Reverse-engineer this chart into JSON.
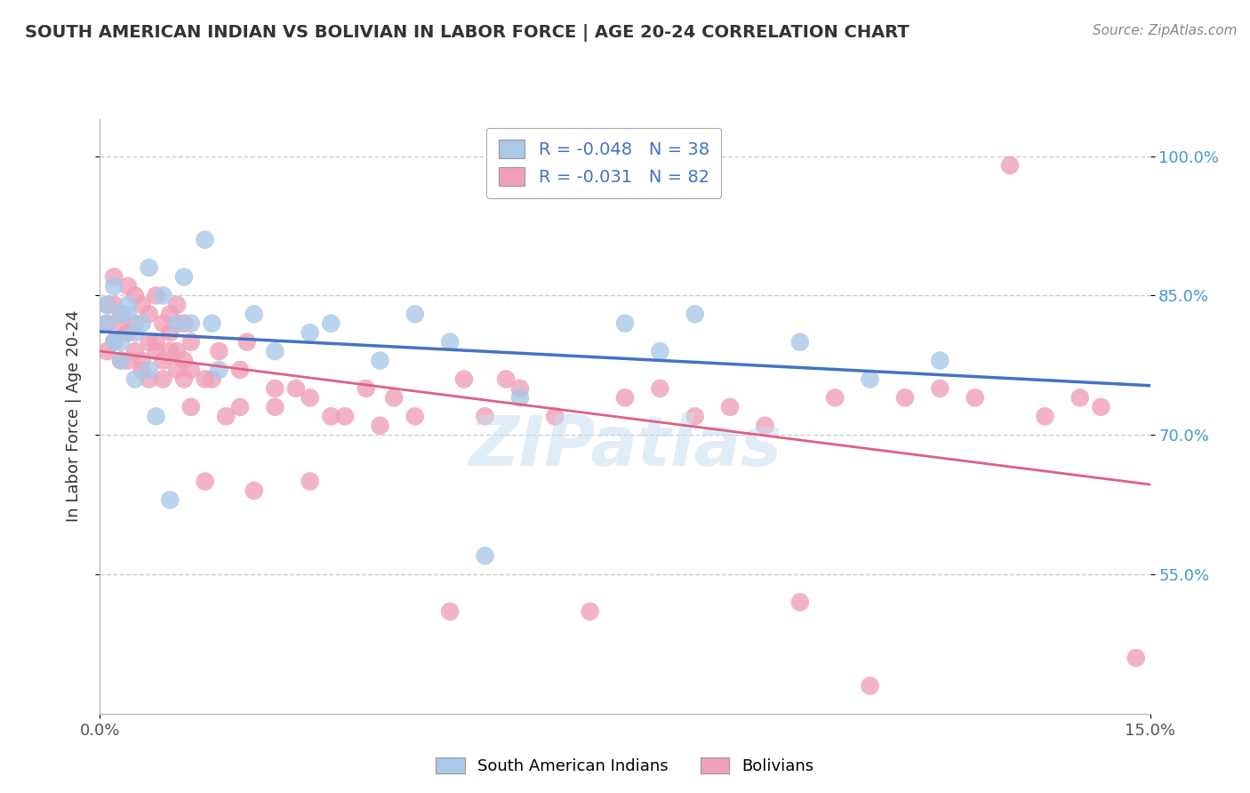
{
  "title": "SOUTH AMERICAN INDIAN VS BOLIVIAN IN LABOR FORCE | AGE 20-24 CORRELATION CHART",
  "source_text": "Source: ZipAtlas.com",
  "ylabel": "In Labor Force | Age 20-24",
  "legend_label_blue": "South American Indians",
  "legend_label_pink": "Bolivians",
  "r_blue": -0.048,
  "n_blue": 38,
  "r_pink": -0.031,
  "n_pink": 82,
  "xmin": 0.0,
  "xmax": 0.15,
  "ymin": 0.4,
  "ymax": 1.04,
  "yticks": [
    0.55,
    0.7,
    0.85,
    1.0
  ],
  "ytick_labels_right": [
    "55.0%",
    "70.0%",
    "85.0%",
    "100.0%"
  ],
  "xticks": [
    0.0,
    0.15
  ],
  "xtick_labels": [
    "0.0%",
    "15.0%"
  ],
  "blue_color": "#aac8e8",
  "pink_color": "#f0a0b8",
  "blue_line_color": "#4472c4",
  "pink_line_color": "#e06080",
  "title_color": "#333333",
  "source_color": "#888888",
  "grid_color": "#cccccc",
  "blue_x": [
    0.001,
    0.001,
    0.002,
    0.003,
    0.003,
    0.004,
    0.005,
    0.005,
    0.006,
    0.007,
    0.008,
    0.009,
    0.01,
    0.011,
    0.012,
    0.013,
    0.015,
    0.016,
    0.017,
    0.022,
    0.025,
    0.03,
    0.033,
    0.04,
    0.045,
    0.05,
    0.055,
    0.06,
    0.075,
    0.08,
    0.085,
    0.1,
    0.11,
    0.12,
    0.003,
    0.004,
    0.007,
    0.002
  ],
  "blue_y": [
    0.82,
    0.84,
    0.8,
    0.83,
    0.78,
    0.84,
    0.81,
    0.76,
    0.82,
    0.88,
    0.72,
    0.85,
    0.63,
    0.82,
    0.87,
    0.82,
    0.91,
    0.82,
    0.77,
    0.83,
    0.79,
    0.81,
    0.82,
    0.78,
    0.83,
    0.8,
    0.57,
    0.74,
    0.82,
    0.79,
    0.83,
    0.8,
    0.76,
    0.78,
    0.8,
    0.83,
    0.77,
    0.86
  ],
  "pink_x": [
    0.001,
    0.001,
    0.002,
    0.002,
    0.003,
    0.003,
    0.004,
    0.004,
    0.005,
    0.005,
    0.006,
    0.006,
    0.007,
    0.007,
    0.008,
    0.008,
    0.009,
    0.009,
    0.01,
    0.01,
    0.011,
    0.011,
    0.012,
    0.012,
    0.013,
    0.013,
    0.015,
    0.016,
    0.017,
    0.018,
    0.02,
    0.021,
    0.022,
    0.025,
    0.028,
    0.03,
    0.033,
    0.035,
    0.038,
    0.04,
    0.042,
    0.045,
    0.05,
    0.052,
    0.055,
    0.058,
    0.06,
    0.065,
    0.07,
    0.075,
    0.08,
    0.085,
    0.09,
    0.095,
    0.1,
    0.105,
    0.11,
    0.115,
    0.12,
    0.125,
    0.13,
    0.135,
    0.14,
    0.143,
    0.148,
    0.001,
    0.002,
    0.003,
    0.004,
    0.005,
    0.006,
    0.007,
    0.008,
    0.009,
    0.01,
    0.011,
    0.012,
    0.013,
    0.015,
    0.02,
    0.025,
    0.03
  ],
  "pink_y": [
    0.84,
    0.79,
    0.87,
    0.8,
    0.83,
    0.78,
    0.86,
    0.78,
    0.85,
    0.79,
    0.84,
    0.77,
    0.83,
    0.76,
    0.85,
    0.8,
    0.76,
    0.82,
    0.83,
    0.79,
    0.84,
    0.77,
    0.76,
    0.82,
    0.73,
    0.8,
    0.65,
    0.76,
    0.79,
    0.72,
    0.73,
    0.8,
    0.64,
    0.73,
    0.75,
    0.65,
    0.72,
    0.72,
    0.75,
    0.71,
    0.74,
    0.72,
    0.51,
    0.76,
    0.72,
    0.76,
    0.75,
    0.72,
    0.51,
    0.74,
    0.75,
    0.72,
    0.73,
    0.71,
    0.52,
    0.74,
    0.43,
    0.74,
    0.75,
    0.74,
    0.99,
    0.72,
    0.74,
    0.73,
    0.46,
    0.82,
    0.84,
    0.82,
    0.81,
    0.82,
    0.78,
    0.8,
    0.79,
    0.78,
    0.81,
    0.79,
    0.78,
    0.77,
    0.76,
    0.77,
    0.75,
    0.74
  ]
}
